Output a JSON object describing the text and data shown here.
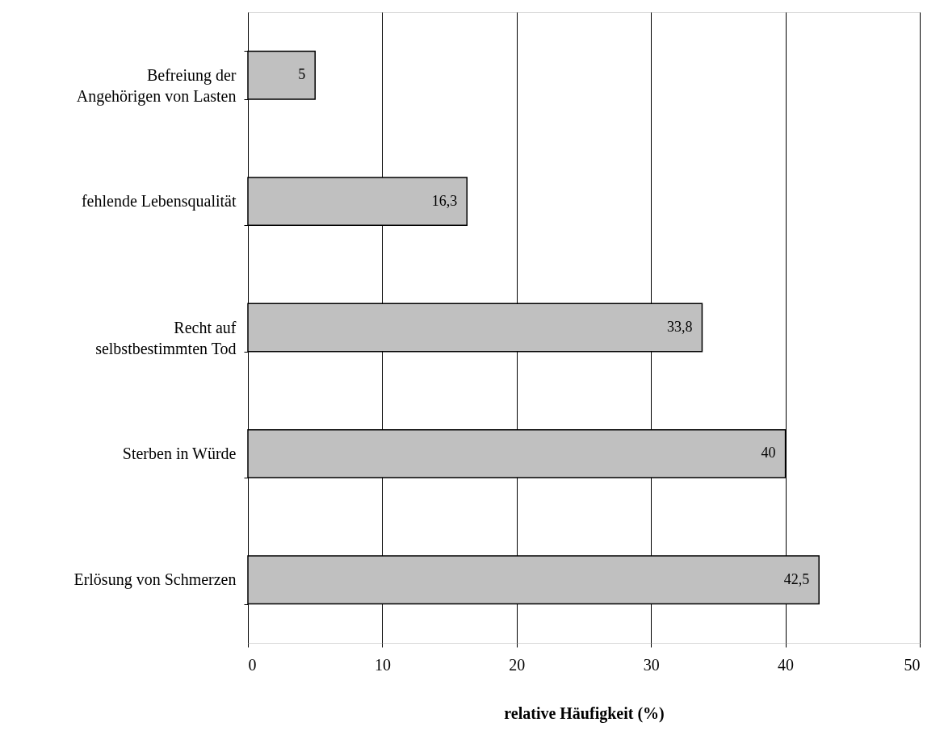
{
  "chart_data": {
    "type": "bar",
    "orientation": "horizontal",
    "categories": [
      "Befreiung der\nAngehörigen von Lasten",
      "fehlende Lebensqualität",
      "Recht auf\nselbstbestimmten Tod",
      "Sterben in Würde",
      "Erlösung von Schmerzen"
    ],
    "values": [
      5,
      16.3,
      33.8,
      40,
      42.5
    ],
    "value_labels": [
      "5",
      "16,3",
      "33,8",
      "40",
      "42,5"
    ],
    "color": "#c0c0c0",
    "xlim": [
      0,
      50
    ],
    "xticks": [
      0,
      10,
      20,
      30,
      40,
      50
    ],
    "xlabel": "relative Häufigkeit (%)",
    "grid": "x"
  }
}
